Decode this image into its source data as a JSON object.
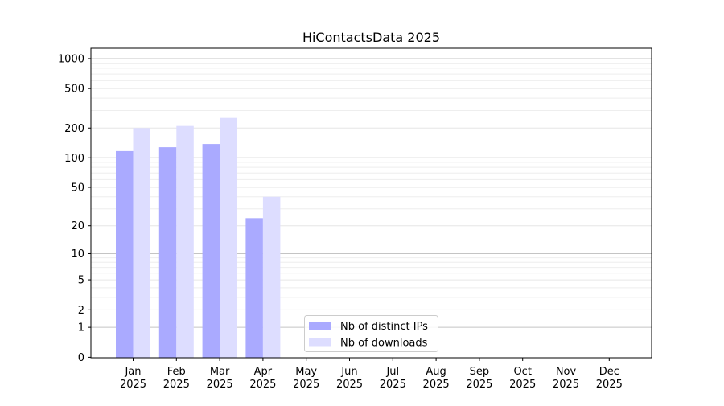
{
  "chart_data": {
    "type": "bar",
    "title": "HiContactsData 2025",
    "xlabel": "",
    "ylabel": "",
    "yscale": "log10(1+y)",
    "ylim": [
      0,
      1300
    ],
    "yticks": [
      0,
      1,
      2,
      5,
      10,
      20,
      50,
      100,
      200,
      500,
      1000
    ],
    "grid": true,
    "legend_position": "lower-center",
    "categories": [
      [
        "Jan",
        "2025"
      ],
      [
        "Feb",
        "2025"
      ],
      [
        "Mar",
        "2025"
      ],
      [
        "Apr",
        "2025"
      ],
      [
        "May",
        "2025"
      ],
      [
        "Jun",
        "2025"
      ],
      [
        "Jul",
        "2025"
      ],
      [
        "Aug",
        "2025"
      ],
      [
        "Sep",
        "2025"
      ],
      [
        "Oct",
        "2025"
      ],
      [
        "Nov",
        "2025"
      ],
      [
        "Dec",
        "2025"
      ]
    ],
    "series": [
      {
        "name": "Nb of distinct IPs",
        "color": "#aaaaff",
        "values": [
          117,
          128,
          138,
          24,
          null,
          null,
          null,
          null,
          null,
          null,
          null,
          null
        ]
      },
      {
        "name": "Nb of downloads",
        "color": "#ddddff",
        "values": [
          200,
          210,
          253,
          40,
          null,
          null,
          null,
          null,
          null,
          null,
          null,
          null
        ]
      }
    ]
  }
}
